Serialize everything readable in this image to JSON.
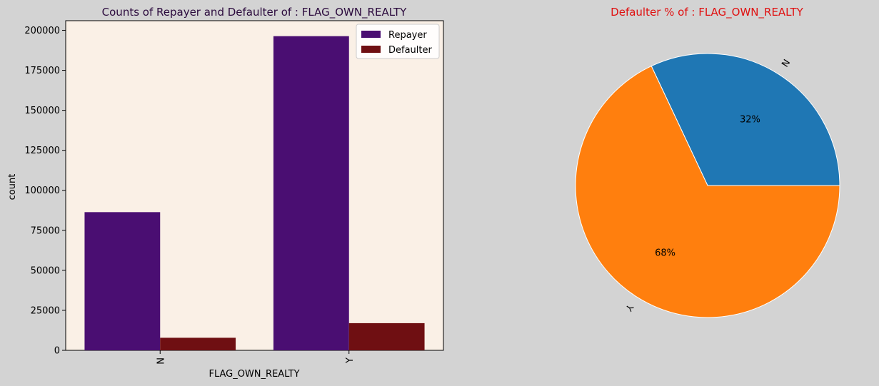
{
  "chart_data": [
    {
      "type": "bar",
      "title": "Counts of Repayer and Defaulter of : FLAG_OWN_REALTY",
      "xlabel": "FLAG_OWN_REALTY",
      "ylabel": "count",
      "categories": [
        "N",
        "Y"
      ],
      "series": [
        {
          "name": "Repayer",
          "values": [
            86357,
            196329
          ],
          "color": "#4a0e72"
        },
        {
          "name": "Defaulter",
          "values": [
            7842,
            16983
          ],
          "color": "#6f0f12"
        }
      ],
      "ylim": [
        0,
        206000
      ],
      "yticks": [
        0,
        25000,
        50000,
        75000,
        100000,
        125000,
        150000,
        175000,
        200000
      ],
      "ytick_labels": [
        "0",
        "25000",
        "50000",
        "75000",
        "100000",
        "125000",
        "150000",
        "175000",
        "200000"
      ],
      "legend_position": "top-right",
      "grid": false,
      "plot_background": "#faf0e6",
      "title_color": "#2b0a3d"
    },
    {
      "type": "pie",
      "title": "Defaulter % of : FLAG_OWN_REALTY",
      "labels": [
        "N",
        "Y"
      ],
      "values": [
        32,
        68
      ],
      "value_labels": [
        "32%",
        "68%"
      ],
      "colors": [
        "#1f77b4",
        "#ff7f0e"
      ],
      "title_color": "#e01010"
    }
  ],
  "background": "#d3d3d3"
}
